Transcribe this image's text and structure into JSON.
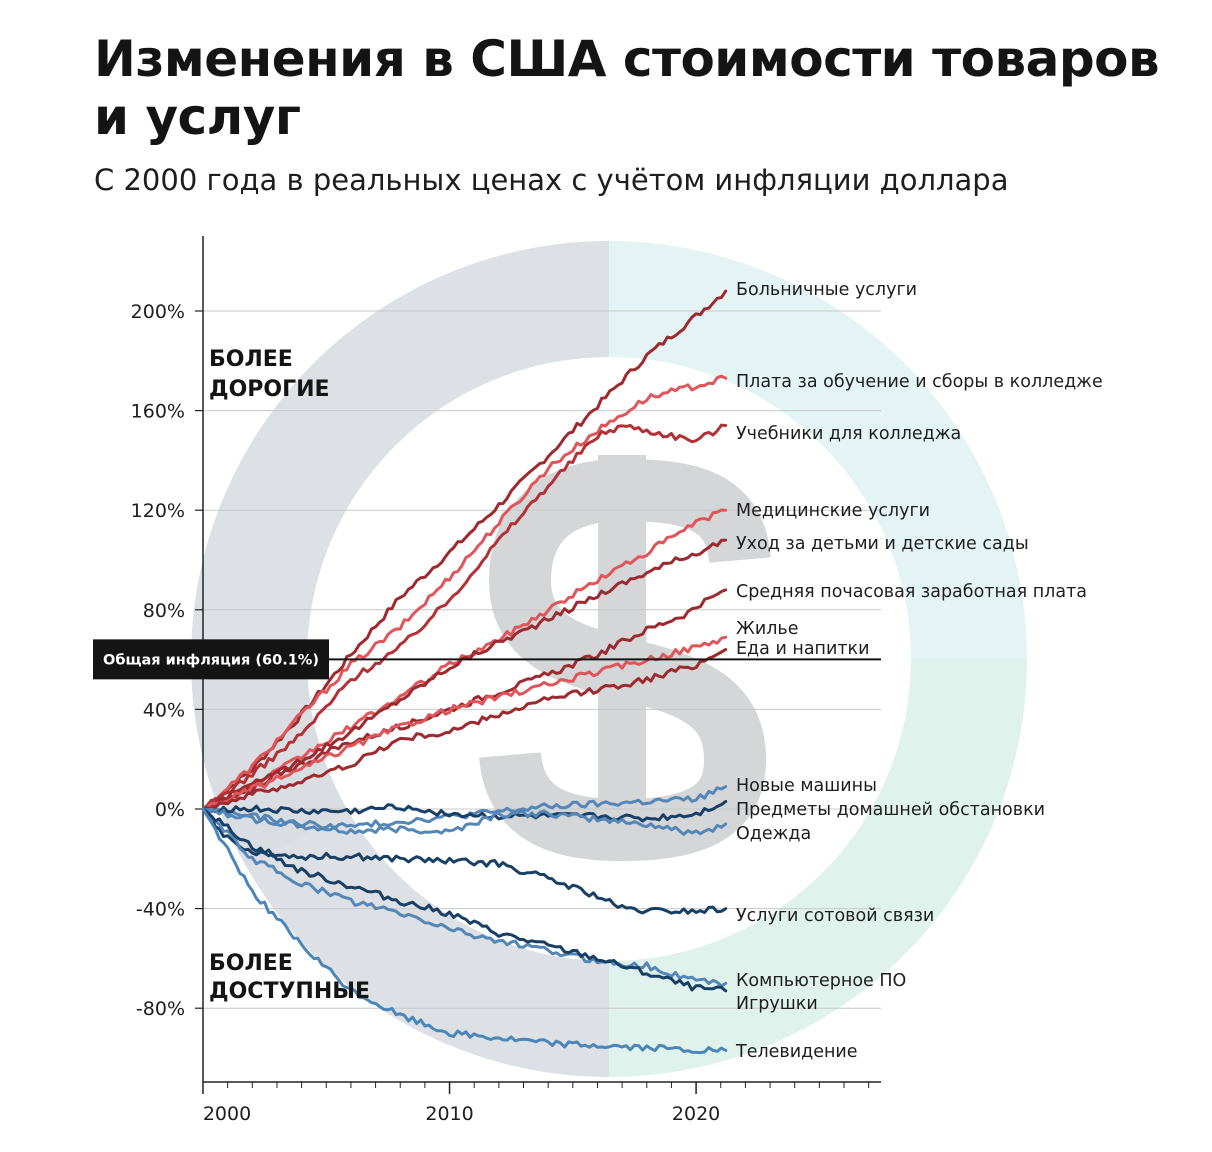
{
  "page": {
    "title": "Изменения в США стоимости товаров и услуг",
    "subtitle": "С 2000 года в реальных ценах с учётом инфляции доллара"
  },
  "chart_data": {
    "type": "line",
    "title": "Изменения в США стоимости товаров и услуг",
    "subtitle": "С 2000 года в реальных ценах с учётом инфляции доллара",
    "xlabel": "",
    "ylabel": "",
    "xlim": [
      2000,
      2027.5
    ],
    "ylim": [
      -110,
      230
    ],
    "x_ticks": [
      2000,
      2010,
      2020
    ],
    "y_ticks": [
      200,
      160,
      120,
      80,
      40,
      0,
      -40,
      -80
    ],
    "y_tick_labels": [
      "200%",
      "160%",
      "120%",
      "80%",
      "40%",
      "0%",
      "-40%",
      "-80%"
    ],
    "grid": true,
    "zone_labels": {
      "upper": [
        "БОЛЕЕ",
        "ДОРОГИЕ"
      ],
      "lower": [
        "БОЛЕЕ",
        "ДОСТУПНЫЕ"
      ]
    },
    "reference_line": {
      "label": "Общая инфляция (60.1%)",
      "value": 60.1,
      "color": "#141414"
    },
    "background_icon": "dollar-sign-icon",
    "colors": {
      "dark_red": "#9c2a2e",
      "red": "#e0555a",
      "dark_blue": "#183f66",
      "blue": "#5486b8",
      "ring_gray": "#dde1e6",
      "ring_cyan": "#e4f4f5",
      "ring_mint": "#dff3ec",
      "dollar": "#d4d6d8"
    },
    "series": [
      {
        "name": "Больничные услуги",
        "color": "#9c2a2e",
        "x": [
          2000,
          2002,
          2004,
          2006,
          2008,
          2010,
          2012,
          2014,
          2016,
          2018,
          2020,
          2021.2
        ],
        "y": [
          0,
          16,
          38,
          62,
          85,
          103,
          122,
          142,
          162,
          182,
          198,
          208
        ]
      },
      {
        "name": "Плата за обучение и сборы в колледже",
        "color": "#e0555a",
        "x": [
          2000,
          2002,
          2004,
          2006,
          2008,
          2010,
          2012,
          2014,
          2016,
          2018,
          2020,
          2021.2
        ],
        "y": [
          0,
          17,
          38,
          58,
          73,
          93,
          115,
          137,
          152,
          165,
          170,
          173
        ]
      },
      {
        "name": "Учебники для колледжа",
        "color": "#b23036",
        "x": [
          2000,
          2002,
          2004,
          2006,
          2008,
          2010,
          2012,
          2014,
          2016,
          2017,
          2018,
          2019,
          2020,
          2021.2
        ],
        "y": [
          0,
          14,
          30,
          52,
          65,
          84,
          108,
          130,
          150,
          154,
          152,
          150,
          148,
          154
        ]
      },
      {
        "name": "Медицинские услуги",
        "color": "#e0555a",
        "x": [
          2000,
          2002,
          2004,
          2006,
          2008,
          2010,
          2012,
          2014,
          2016,
          2018,
          2020,
          2021.2
        ],
        "y": [
          0,
          9,
          21,
          33,
          45,
          58,
          68,
          80,
          92,
          103,
          115,
          120
        ]
      },
      {
        "name": "Уход за детьми и детские сады",
        "color": "#9c2a2e",
        "x": [
          2000,
          2002,
          2004,
          2006,
          2008,
          2010,
          2012,
          2014,
          2016,
          2018,
          2020,
          2021.2
        ],
        "y": [
          0,
          8,
          20,
          31,
          44,
          57,
          67,
          76,
          86,
          95,
          103,
          108
        ]
      },
      {
        "name": "Средняя почасовая заработная плата",
        "color": "#9c2a2e",
        "x": [
          2000,
          2002,
          2004,
          2006,
          2008,
          2010,
          2012,
          2014,
          2016,
          2018,
          2019.5,
          2021.2
        ],
        "y": [
          0,
          10,
          18,
          27,
          33,
          40,
          47,
          54,
          62,
          72,
          78,
          88
        ]
      },
      {
        "name": "Жилье",
        "color": "#e0555a",
        "x": [
          2000,
          2002,
          2004,
          2006,
          2008,
          2010,
          2012,
          2014,
          2016,
          2018,
          2020,
          2021.2
        ],
        "y": [
          0,
          8,
          16,
          25,
          33,
          40,
          45,
          50,
          55,
          60,
          65,
          69
        ]
      },
      {
        "name": "Еда и напитки",
        "color": "#9c2a2e",
        "x": [
          2000,
          2002,
          2004,
          2006,
          2008,
          2010,
          2012,
          2014,
          2016,
          2018,
          2020,
          2021.2
        ],
        "y": [
          0,
          6,
          11,
          18,
          28,
          31,
          38,
          44,
          48,
          52,
          58,
          64
        ]
      },
      {
        "name": "Новые машины",
        "color": "#5486b8",
        "x": [
          2000,
          2002,
          2004,
          2006,
          2008,
          2010,
          2012,
          2014,
          2016,
          2018,
          2020,
          2021.2
        ],
        "y": [
          0,
          -3,
          -6,
          -7,
          -5,
          -3,
          -1,
          1,
          2,
          3,
          4,
          9
        ]
      },
      {
        "name": "Предметы домашней обстановки",
        "color": "#183f66",
        "x": [
          2000,
          2002,
          2004,
          2006,
          2008,
          2010,
          2012,
          2014,
          2016,
          2018,
          2020,
          2021.2
        ],
        "y": [
          0,
          0,
          -1,
          -1,
          1,
          -2,
          -3,
          -3,
          -3,
          -4,
          -2,
          3
        ]
      },
      {
        "name": "Одежда",
        "color": "#5486b8",
        "x": [
          2000,
          2002,
          2004,
          2006,
          2008,
          2010,
          2012,
          2014,
          2016,
          2018,
          2020,
          2021.2
        ],
        "y": [
          0,
          -4,
          -7,
          -9,
          -8,
          -9,
          -2,
          -2,
          -4,
          -6,
          -10,
          -6
        ]
      },
      {
        "name": "Услуги сотовой связи",
        "color": "#183f66",
        "x": [
          2000,
          2001,
          2002,
          2004,
          2006,
          2008,
          2010,
          2012,
          2014,
          2016,
          2017,
          2018,
          2020,
          2021.2
        ],
        "y": [
          0,
          -12,
          -17,
          -19,
          -19,
          -20,
          -21,
          -22,
          -28,
          -35,
          -40,
          -41,
          -41,
          -40
        ]
      },
      {
        "name": "Компьютерное ПО",
        "color": "#5486b8",
        "x": [
          2000,
          2002,
          2004,
          2006,
          2008,
          2010,
          2012,
          2014,
          2016,
          2018,
          2020,
          2021.2
        ],
        "y": [
          0,
          -20,
          -30,
          -37,
          -42,
          -48,
          -53,
          -57,
          -61,
          -63,
          -69,
          -70
        ]
      },
      {
        "name": "Игрушки",
        "color": "#183f66",
        "x": [
          2000,
          2002,
          2004,
          2006,
          2008,
          2010,
          2012,
          2014,
          2016,
          2018,
          2020,
          2021.2
        ],
        "y": [
          0,
          -15,
          -25,
          -31,
          -37,
          -42,
          -50,
          -55,
          -60,
          -66,
          -72,
          -73
        ]
      },
      {
        "name": "Телевидение",
        "color": "#4a86b9",
        "x": [
          2000,
          2002,
          2004,
          2006,
          2008,
          2010,
          2012,
          2014,
          2016,
          2018,
          2020,
          2021.2
        ],
        "y": [
          0,
          -33,
          -55,
          -73,
          -83,
          -90,
          -92,
          -94,
          -95,
          -96,
          -97,
          -97
        ]
      }
    ]
  }
}
